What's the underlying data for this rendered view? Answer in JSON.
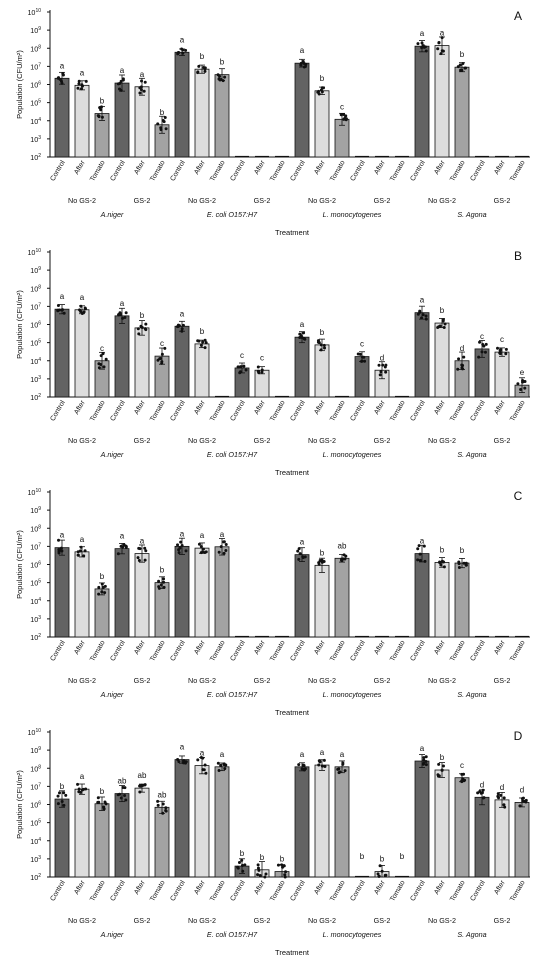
{
  "figure": {
    "ylabel": "Population (CFU/m²)",
    "xlabel": "Treatment",
    "yticks": [
      2,
      3,
      4,
      5,
      6,
      7,
      8,
      9,
      10
    ],
    "tick_base": "10",
    "conditions": [
      "Control",
      "After",
      "Tomato"
    ],
    "groups": [
      "No GS-2",
      "GS-2",
      "No GS-2",
      "GS-2",
      "No GS-2",
      "GS-2",
      "No GS-2",
      "GS-2"
    ],
    "organisms": [
      "A.niger",
      "E. coli O157:H7",
      "L. monocytogenes",
      "S. Agona"
    ],
    "colors": {
      "control": "#636363",
      "after": "#dddddd",
      "tomato": "#a3a3a3",
      "bar_stroke": "#111111",
      "point": "#111111"
    }
  },
  "chart_data": [
    {
      "type": "bar",
      "panel": "A",
      "yscale": "log",
      "ylim": [
        100,
        10000000000
      ],
      "values": [
        2200000,
        900000,
        25000,
        1200000,
        750000,
        6000,
        60000000,
        7000000,
        3500000,
        100,
        100,
        100,
        15000000,
        450000,
        12000,
        100,
        100,
        100,
        130000000,
        140000000,
        9000000,
        100,
        100,
        100
      ],
      "letters": [
        "a",
        "a",
        "b",
        "a",
        "a",
        "b",
        "a",
        "b",
        "b",
        "",
        "",
        "",
        "a",
        "b",
        "c",
        "",
        "",
        "",
        "a",
        "a",
        "b",
        "",
        "",
        ""
      ]
    },
    {
      "type": "bar",
      "panel": "B",
      "yscale": "log",
      "ylim": [
        100,
        10000000000
      ],
      "values": [
        7000000,
        6500000,
        10000,
        3000000,
        650000,
        18000,
        800000,
        85000,
        100,
        4000,
        3000,
        100,
        200000,
        75000,
        100,
        17000,
        3000,
        100,
        4500000,
        1200000,
        10000,
        45000,
        30000,
        450
      ],
      "letters": [
        "a",
        "a",
        "c",
        "a",
        "b",
        "c",
        "a",
        "b",
        "",
        "c",
        "c",
        "",
        "a",
        "b",
        "",
        "c",
        "d",
        "",
        "a",
        "b",
        "d",
        "c",
        "c",
        "e"
      ]
    },
    {
      "type": "bar",
      "panel": "C",
      "yscale": "log",
      "ylim": [
        100,
        10000000000
      ],
      "values": [
        8500000,
        5000000,
        45000,
        7500000,
        4000000,
        100000,
        10000000,
        8000000,
        9500000,
        100,
        100,
        100,
        3500000,
        900000,
        2200000,
        100,
        100,
        100,
        4000000,
        1300000,
        1200000,
        100,
        100,
        100
      ],
      "letters": [
        "a",
        "a",
        "b",
        "a",
        "a",
        "b",
        "a",
        "a",
        "a",
        "",
        "",
        "",
        "a",
        "b",
        "ab",
        "",
        "",
        "",
        "a",
        "b",
        "b",
        "",
        "",
        ""
      ]
    },
    {
      "type": "bar",
      "panel": "D",
      "yscale": "log",
      "ylim": [
        100,
        10000000000
      ],
      "values": [
        2000000,
        7000000,
        1100000,
        4000000,
        8000000,
        700000,
        300000000,
        140000000,
        120000000,
        400,
        250,
        200,
        120000000,
        150000000,
        120000000,
        100,
        200,
        100,
        250000000,
        80000000,
        30000000,
        2500000,
        1800000,
        1300000
      ],
      "letters": [
        "b",
        "a",
        "b",
        "ab",
        "ab",
        "ab",
        "a",
        "a",
        "a",
        "b",
        "b",
        "b",
        "a",
        "a",
        "a",
        "b",
        "b",
        "b",
        "a",
        "b",
        "c",
        "d",
        "d",
        "d"
      ]
    }
  ]
}
